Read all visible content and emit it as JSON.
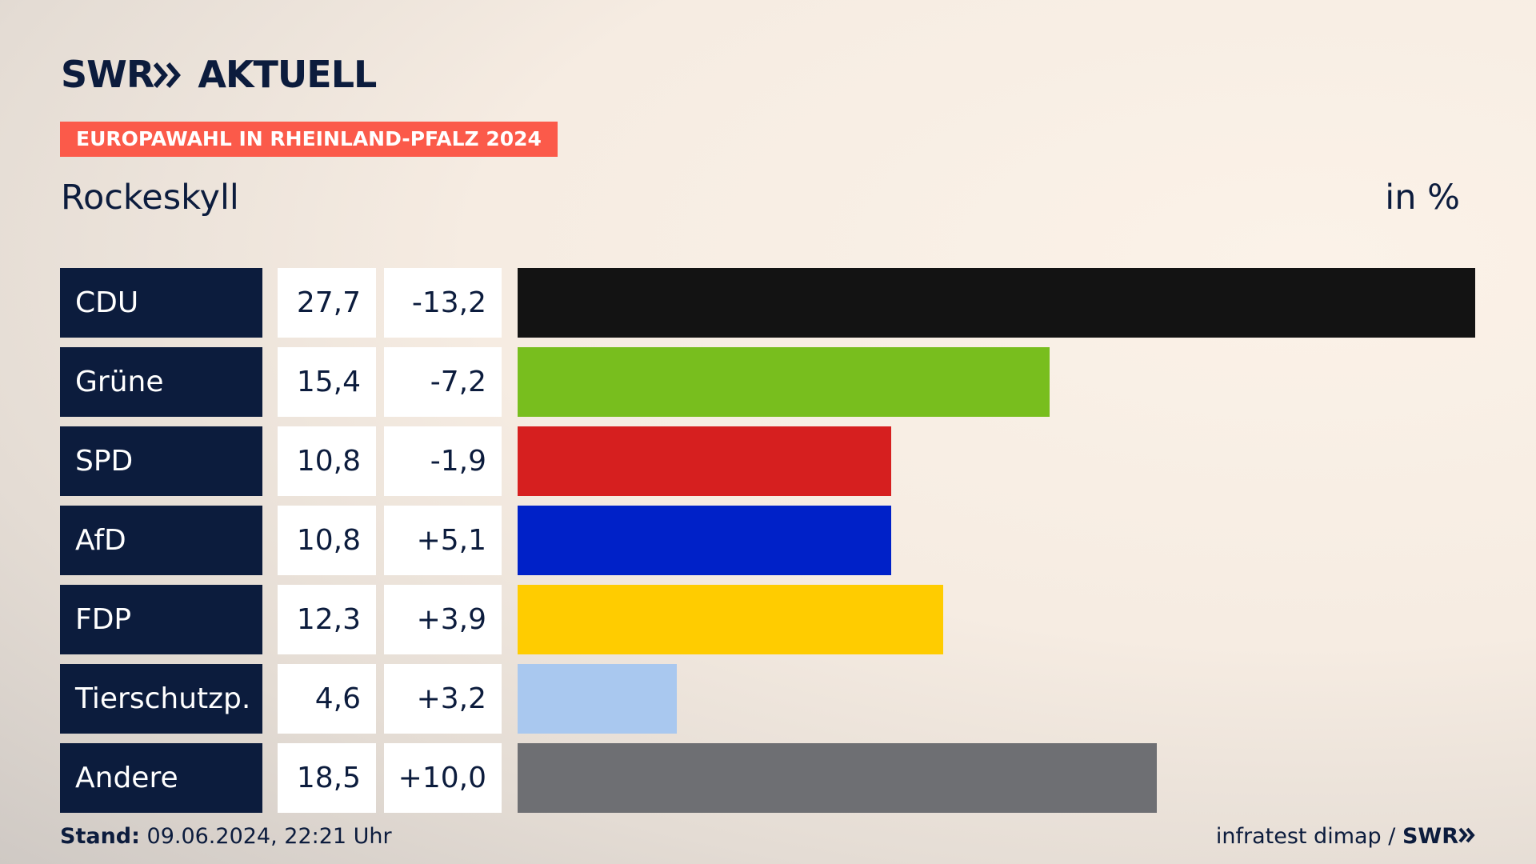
{
  "chart_data": {
    "type": "bar",
    "brand": "SWR",
    "brand_name": "AKTUELL",
    "title": "EUROPAWAHL IN RHEINLAND-PFALZ 2024",
    "subtitle": "Rockeskyll",
    "unit": "in %",
    "categories": [
      "CDU",
      "Grüne",
      "SPD",
      "AfD",
      "FDP",
      "Tierschutzp.",
      "Andere"
    ],
    "values": [
      27.7,
      15.4,
      10.8,
      10.8,
      12.3,
      4.6,
      18.5
    ],
    "value_labels": [
      "27,7",
      "15,4",
      "10,8",
      "10,8",
      "12,3",
      "4,6",
      "18,5"
    ],
    "changes": [
      -13.2,
      -7.2,
      -1.9,
      5.1,
      3.9,
      3.2,
      10.0
    ],
    "change_labels": [
      "-13,2",
      "-7,2",
      "-1,9",
      "+5,1",
      "+3,9",
      "+3,2",
      "+10,0"
    ],
    "colors": [
      "#131313",
      "#78be1e",
      "#d61f1f",
      "#0021c8",
      "#ffcc00",
      "#a9c8ef",
      "#6e6f73"
    ],
    "footer_label": "Stand:",
    "footer_date": "09.06.2024, 22:21 Uhr",
    "source": "infratest dimap /",
    "source_brand": "SWR"
  }
}
